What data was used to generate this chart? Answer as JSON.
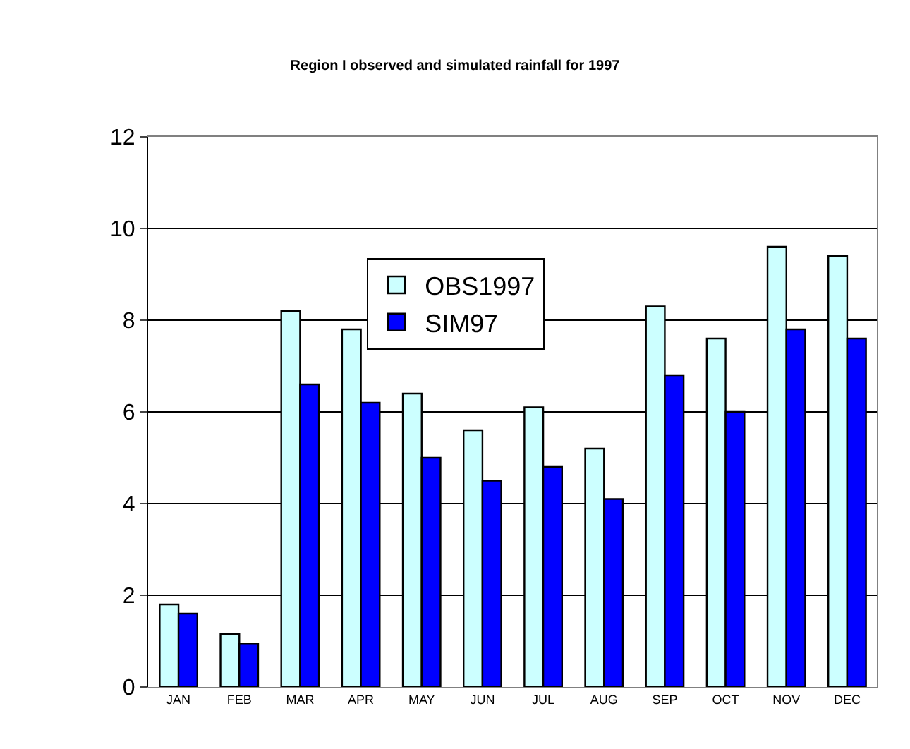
{
  "chart_data": {
    "type": "bar",
    "title": "Region I observed and simulated rainfall for 1997",
    "categories": [
      "JAN",
      "FEB",
      "MAR",
      "APR",
      "MAY",
      "JUN",
      "JUL",
      "AUG",
      "SEP",
      "OCT",
      "NOV",
      "DEC"
    ],
    "series": [
      {
        "name": "OBS1997",
        "color": "#ccffff",
        "values": [
          1.8,
          1.15,
          8.2,
          7.8,
          6.4,
          5.6,
          6.1,
          5.2,
          8.3,
          7.6,
          9.6,
          9.4
        ]
      },
      {
        "name": "SIM97",
        "color": "#0000ff",
        "values": [
          1.6,
          0.95,
          6.6,
          6.2,
          5.0,
          4.5,
          4.8,
          4.1,
          6.8,
          6.0,
          7.8,
          7.6
        ]
      }
    ],
    "ylim": [
      0,
      12
    ],
    "yticks": [
      0,
      2,
      4,
      6,
      8,
      10,
      12
    ],
    "grid": "y",
    "legend": "top"
  }
}
